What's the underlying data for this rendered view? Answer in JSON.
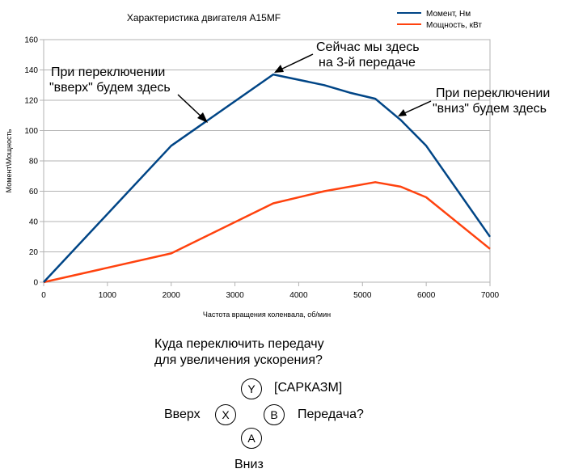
{
  "chart_data": {
    "type": "line",
    "title": "Характеристика двигателя A15MF",
    "xlabel": "Частота вращения коленвала, об/мин",
    "ylabel": "Момент\\Мощность",
    "xlim": [
      0,
      7000
    ],
    "ylim": [
      0,
      160
    ],
    "xticks": [
      "0",
      "1000",
      "2000",
      "3000",
      "4000",
      "5000",
      "6000",
      "7000"
    ],
    "yticks": [
      "0",
      "20",
      "40",
      "60",
      "80",
      "100",
      "120",
      "140",
      "160"
    ],
    "grid": true,
    "legend": "top-right",
    "series": [
      {
        "name": "Момент, Нм",
        "color": "#004586",
        "x": [
          0,
          2000,
          3600,
          4400,
          4800,
          5200,
          5600,
          6000,
          7000
        ],
        "y": [
          0,
          90,
          137,
          130,
          125,
          121,
          107,
          90,
          30
        ]
      },
      {
        "name": "Мощность, кВт",
        "color": "#ff420e",
        "x": [
          0,
          2000,
          3600,
          4400,
          5200,
          5600,
          6000,
          7000
        ],
        "y": [
          0,
          19,
          52,
          60,
          66,
          63,
          56,
          22
        ]
      }
    ],
    "annotations": [
      {
        "lines": [
          "При переключении",
          "\"вверх\" будем здесь"
        ]
      },
      {
        "lines": [
          "Сейчас мы здесь",
          "на 3-й передаче"
        ]
      },
      {
        "lines": [
          "При переключении",
          "\"вниз\" будем здесь"
        ]
      }
    ]
  },
  "question": {
    "line1": "Куда переключить передачу",
    "line2": "для увеличения ускорения?"
  },
  "buttons": {
    "y": {
      "letter": "Y",
      "label": "[САРКАЗМ]"
    },
    "x": {
      "letter": "X",
      "label": "Вверх"
    },
    "b": {
      "letter": "B",
      "label": "Передача?"
    },
    "a": {
      "letter": "A",
      "label": "Вниз"
    }
  }
}
